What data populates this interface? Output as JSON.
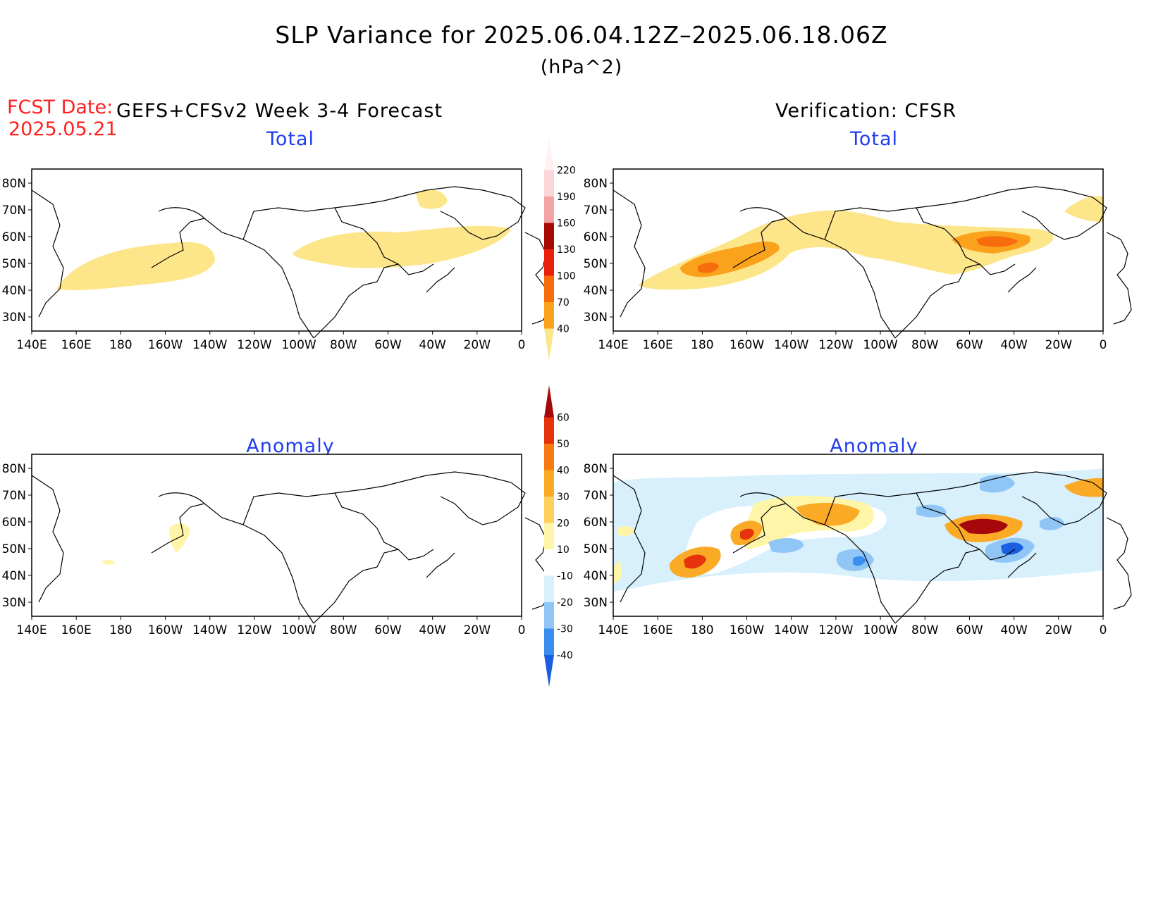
{
  "title": "SLP Variance for 2025.06.04.12Z–2025.06.18.06Z",
  "units": "(hPa^2)",
  "fcst_label": "FCST Date:",
  "fcst_date": "2025.05.21",
  "left_header": "GEFS+CFSv2 Week 3-4 Forecast",
  "right_header": "Verification: CFSR",
  "panel_titles": {
    "forecast_total": "Total",
    "verification_total": "Total",
    "forecast_anomaly": "Anomaly",
    "verification_anomaly": "Anomaly"
  },
  "chart_data": {
    "type": "map-contour",
    "lat_ticks": [
      "80N",
      "70N",
      "60N",
      "50N",
      "40N",
      "30N"
    ],
    "lon_ticks": [
      "140E",
      "160E",
      "180",
      "160W",
      "140W",
      "120W",
      "100W",
      "80W",
      "60W",
      "40W",
      "20W",
      "0"
    ],
    "lon_range": [
      140,
      360
    ],
    "lat_range": [
      25,
      85
    ],
    "total_colorbar": {
      "levels": [
        "40",
        "70",
        "100",
        "130",
        "160",
        "190",
        "220"
      ],
      "colors": [
        "#fde58a",
        "#fba21c",
        "#f76d0c",
        "#e8200c",
        "#a80a05",
        "#f3a3a6",
        "#fbd5d8",
        "#fff0f2"
      ]
    },
    "anomaly_colorbar": {
      "levels": [
        "-40",
        "-30",
        "-20",
        "-10",
        "10",
        "20",
        "30",
        "40",
        "50",
        "60"
      ],
      "colors": [
        "#1a5fe0",
        "#3a8ef0",
        "#8fc6f5",
        "#d7f0fc",
        "#ffffff",
        "#fff5a8",
        "#fdcf5c",
        "#fbaa26",
        "#f77a12",
        "#e5330c",
        "#a5070a"
      ]
    }
  }
}
